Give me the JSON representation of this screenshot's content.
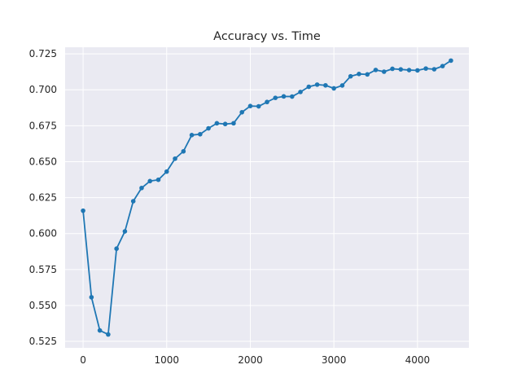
{
  "chart_data": {
    "type": "line",
    "title": "Accuracy vs. Time",
    "xlabel": "",
    "ylabel": "",
    "xlim": [
      -215,
      4615
    ],
    "ylim": [
      0.5205,
      0.7296
    ],
    "grid": true,
    "legend": false,
    "colors": {
      "plot_background": "#EAEAF2",
      "grid": "#FFFFFF",
      "line": "#1F77B4",
      "text": "#262626"
    },
    "x_ticks": [
      0,
      1000,
      2000,
      3000,
      4000
    ],
    "x_tick_labels": [
      "0",
      "1000",
      "2000",
      "3000",
      "4000"
    ],
    "y_ticks": [
      0.525,
      0.55,
      0.575,
      0.6,
      0.625,
      0.65,
      0.675,
      0.7,
      0.725
    ],
    "y_tick_labels": [
      "0.525",
      "0.550",
      "0.575",
      "0.600",
      "0.625",
      "0.650",
      "0.675",
      "0.700",
      "0.725"
    ],
    "series": [
      {
        "marker": "circle",
        "x": [
          0,
          100,
          200,
          300,
          400,
          500,
          600,
          700,
          800,
          900,
          1000,
          1100,
          1200,
          1300,
          1400,
          1500,
          1600,
          1700,
          1800,
          1900,
          2000,
          2100,
          2200,
          2300,
          2400,
          2500,
          2600,
          2700,
          2800,
          2900,
          3000,
          3100,
          3200,
          3300,
          3400,
          3500,
          3600,
          3700,
          3800,
          3900,
          4000,
          4100,
          4200,
          4300,
          4400
        ],
        "y": [
          0.6159,
          0.5557,
          0.5326,
          0.5298,
          0.5895,
          0.6015,
          0.6225,
          0.6317,
          0.6365,
          0.6374,
          0.6431,
          0.6521,
          0.6572,
          0.6685,
          0.6691,
          0.6732,
          0.6767,
          0.6762,
          0.6767,
          0.6844,
          0.6887,
          0.6885,
          0.6915,
          0.6944,
          0.6954,
          0.6953,
          0.6985,
          0.7021,
          0.7036,
          0.7031,
          0.701,
          0.703,
          0.7094,
          0.711,
          0.7107,
          0.7138,
          0.7126,
          0.7146,
          0.7142,
          0.7137,
          0.7135,
          0.7148,
          0.7143,
          0.7165,
          0.7203
        ]
      }
    ]
  }
}
